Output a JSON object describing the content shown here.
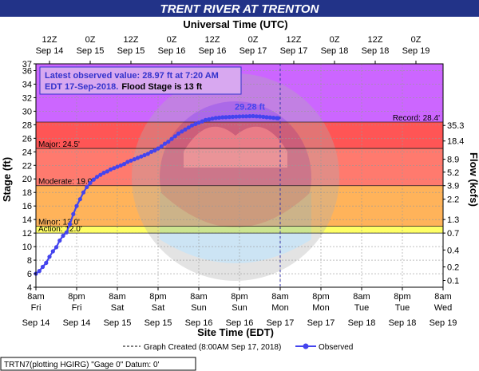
{
  "chart_data": {
    "type": "line",
    "title": "TRENT RIVER AT TRENTON",
    "top_axis_title": "Universal Time (UTC)",
    "bottom_axis_title": "Site Time (EDT)",
    "ylabel": "Stage (ft)",
    "y2label": "Flow (kcfs)",
    "ylim": [
      4,
      37
    ],
    "xlim": [
      "2018-09-14 08:00",
      "2018-09-19 08:00"
    ],
    "grid": true,
    "yticks": [
      4,
      6,
      8,
      10,
      12,
      14,
      16,
      18,
      20,
      22,
      24,
      26,
      28,
      30,
      32,
      34,
      36,
      37
    ],
    "y2ticks": [
      {
        "stage": 5,
        "label": "0.1"
      },
      {
        "stage": 7,
        "label": "0.2"
      },
      {
        "stage": 9.5,
        "label": "0.4"
      },
      {
        "stage": 12,
        "label": "0.7"
      },
      {
        "stage": 14,
        "label": "1.3"
      },
      {
        "stage": 17,
        "label": "2.2"
      },
      {
        "stage": 19,
        "label": "3.9"
      },
      {
        "stage": 21,
        "label": "5.2"
      },
      {
        "stage": 22.9,
        "label": "8.9"
      },
      {
        "stage": 25.6,
        "label": "18.4"
      },
      {
        "stage": 27.9,
        "label": "35.3"
      }
    ],
    "bottom_ticks": [
      {
        "t": 0,
        "time": "8am",
        "day": "Fri",
        "date": "Sep 14"
      },
      {
        "t": 12,
        "time": "8pm",
        "day": "Fri",
        "date": "Sep 14"
      },
      {
        "t": 24,
        "time": "8am",
        "day": "Sat",
        "date": "Sep 15"
      },
      {
        "t": 36,
        "time": "8pm",
        "day": "Sat",
        "date": "Sep 15"
      },
      {
        "t": 48,
        "time": "8am",
        "day": "Sun",
        "date": "Sep 16"
      },
      {
        "t": 60,
        "time": "8pm",
        "day": "Sun",
        "date": "Sep 16"
      },
      {
        "t": 72,
        "time": "8am",
        "day": "Mon",
        "date": "Sep 17"
      },
      {
        "t": 84,
        "time": "8pm",
        "day": "Mon",
        "date": "Sep 17"
      },
      {
        "t": 96,
        "time": "8am",
        "day": "Tue",
        "date": "Sep 18"
      },
      {
        "t": 108,
        "time": "8pm",
        "day": "Tue",
        "date": "Sep 18"
      },
      {
        "t": 120,
        "time": "8am",
        "day": "Wed",
        "date": "Sep 19"
      }
    ],
    "top_ticks": [
      {
        "t": 4,
        "time": "12Z",
        "date": "Sep 14"
      },
      {
        "t": 16,
        "time": "0Z",
        "date": "Sep 15"
      },
      {
        "t": 28,
        "time": "12Z",
        "date": "Sep 15"
      },
      {
        "t": 40,
        "time": "0Z",
        "date": "Sep 16"
      },
      {
        "t": 52,
        "time": "12Z",
        "date": "Sep 16"
      },
      {
        "t": 64,
        "time": "0Z",
        "date": "Sep 17"
      },
      {
        "t": 76,
        "time": "12Z",
        "date": "Sep 17"
      },
      {
        "t": 88,
        "time": "0Z",
        "date": "Sep 18"
      },
      {
        "t": 100,
        "time": "12Z",
        "date": "Sep 18"
      },
      {
        "t": 112,
        "time": "0Z",
        "date": "Sep 19"
      },
      {
        "t": 124,
        "time": "12Z",
        "date": "Sep 19"
      }
    ],
    "flood_categories": [
      {
        "label": "Record: 28.4'",
        "stage": 28.4,
        "color": "#cc66ff",
        "top": 37
      },
      {
        "label": "Major: 24.5'",
        "stage": 24.5,
        "color": "#ff5555",
        "top": 28.4
      },
      {
        "label": "Moderate: 19.0'",
        "stage": 19.0,
        "color": "#ff7a6e",
        "top": 24.5
      },
      {
        "label": "Minor: 13.0'",
        "stage": 13.0,
        "color": "#ffb35a",
        "top": 19.0
      },
      {
        "label": "Action: 12.0'",
        "stage": 12.0,
        "color": "#ffff66",
        "top": 13.0
      }
    ],
    "series": [
      {
        "name": "Observed",
        "color": "#4444ee",
        "points": [
          [
            0,
            6.0
          ],
          [
            1,
            6.4
          ],
          [
            2,
            7.0
          ],
          [
            3,
            7.6
          ],
          [
            4,
            8.5
          ],
          [
            5,
            9.3
          ],
          [
            6,
            9.9
          ],
          [
            7,
            10.9
          ],
          [
            8,
            11.6
          ],
          [
            9,
            12.1
          ],
          [
            10,
            13.3
          ],
          [
            11,
            14.8
          ],
          [
            12,
            16.0
          ],
          [
            13,
            17.0
          ],
          [
            14,
            18.0
          ],
          [
            15,
            18.8
          ],
          [
            16,
            19.4
          ],
          [
            17,
            19.9
          ],
          [
            18,
            20.3
          ],
          [
            19,
            20.6
          ],
          [
            20,
            20.9
          ],
          [
            21,
            21.1
          ],
          [
            22,
            21.4
          ],
          [
            23,
            21.6
          ],
          [
            24,
            21.8
          ],
          [
            25,
            22.0
          ],
          [
            26,
            22.2
          ],
          [
            27,
            22.5
          ],
          [
            28,
            22.7
          ],
          [
            29,
            22.9
          ],
          [
            30,
            23.1
          ],
          [
            31,
            23.3
          ],
          [
            32,
            23.5
          ],
          [
            33,
            23.7
          ],
          [
            34,
            24.0
          ],
          [
            35,
            24.2
          ],
          [
            36,
            24.5
          ],
          [
            37,
            24.8
          ],
          [
            38,
            25.2
          ],
          [
            39,
            25.5
          ],
          [
            40,
            25.9
          ],
          [
            41,
            26.3
          ],
          [
            42,
            26.7
          ],
          [
            43,
            27.0
          ],
          [
            44,
            27.3
          ],
          [
            45,
            27.6
          ],
          [
            46,
            27.9
          ],
          [
            47,
            28.1
          ],
          [
            48,
            28.3
          ],
          [
            49,
            28.5
          ],
          [
            50,
            28.7
          ],
          [
            51,
            28.8
          ],
          [
            52,
            28.9
          ],
          [
            53,
            29.0
          ],
          [
            54,
            29.05
          ],
          [
            55,
            29.1
          ],
          [
            56,
            29.12
          ],
          [
            57,
            29.15
          ],
          [
            58,
            29.18
          ],
          [
            59,
            29.2
          ],
          [
            60,
            29.22
          ],
          [
            61,
            29.24
          ],
          [
            62,
            29.25
          ],
          [
            63,
            29.27
          ],
          [
            64,
            29.28
          ],
          [
            65,
            29.25
          ],
          [
            66,
            29.22
          ],
          [
            67,
            29.18
          ],
          [
            68,
            29.12
          ],
          [
            69,
            29.08
          ],
          [
            70,
            29.03
          ],
          [
            71,
            28.99
          ],
          [
            71.33,
            28.97
          ]
        ]
      }
    ],
    "crest_label": "29.28 ft",
    "crest_point": [
      64,
      29.28
    ],
    "graph_created_t": 72,
    "info_box": {
      "line1": "Latest observed value: 28.97 ft at 7:20 AM",
      "line2_a": "EDT 17-Sep-2018.",
      "line2_b": "Flood Stage is 13 ft"
    },
    "legend": {
      "created": "Graph Created (8:00AM Sep 17, 2018)",
      "observed": "Observed"
    },
    "footer": "TRTN7(plotting HGIRG) \"Gage 0\" Datum: 0'",
    "colors": {
      "title_bar": "#223388",
      "series": "#4444ee",
      "info_text": "#3333cc"
    }
  }
}
